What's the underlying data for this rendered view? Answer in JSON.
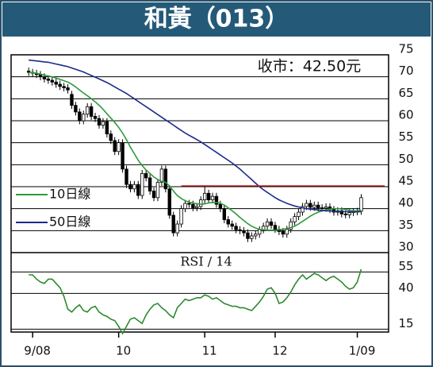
{
  "chart_data": [
    {
      "type": "candlestick",
      "title": "和黃（013）",
      "annotation": "收市：42.50元",
      "xlim": [
        -4.5,
        92
      ],
      "ylim": [
        30,
        75
      ],
      "yticks": [
        30,
        35,
        40,
        45,
        50,
        55,
        60,
        65,
        70,
        75
      ],
      "grid": true,
      "up_color": "#ffffff",
      "down_color": "#000000",
      "legend": "left",
      "open": [
        71.3,
        71,
        70.8,
        70.5,
        70,
        69.5,
        69.2,
        68.8,
        68.3,
        67.8,
        67.5,
        66,
        63.5,
        62,
        60,
        61.5,
        63.2,
        61,
        60.5,
        59,
        59.8,
        57,
        55.5,
        53,
        55,
        49,
        45.5,
        44.5,
        45.5,
        43,
        48,
        47,
        44,
        42.5,
        46,
        49,
        44.5,
        38.5,
        34.5,
        36.5,
        40,
        41.2,
        41,
        40.2,
        40.5,
        42,
        43.5,
        42,
        42.8,
        41,
        40,
        37.5,
        36.5,
        36,
        35.2,
        35,
        34.5,
        33.2,
        33.8,
        34.2,
        35.2,
        36,
        37,
        36.2,
        35.3,
        34.8,
        34.2,
        35.3,
        37,
        38.2,
        39.2,
        40.5,
        41.2,
        40.3,
        40.8,
        40.2,
        40.1,
        40.4,
        39.8,
        39.2,
        39.5,
        38.8,
        38.6,
        39.1,
        39.3,
        39.4
      ],
      "high": [
        72.1,
        71.8,
        71.6,
        71.3,
        70.8,
        70.3,
        70,
        69.6,
        69.1,
        68.6,
        68.3,
        66.8,
        64.3,
        62.8,
        62.3,
        64,
        64,
        61.8,
        61.3,
        60.6,
        60.6,
        57.8,
        56.3,
        55.8,
        55.8,
        49.8,
        46.3,
        46.3,
        46.3,
        48.8,
        48.8,
        47.8,
        44.8,
        46.8,
        49.8,
        49.8,
        45.3,
        39.3,
        37.3,
        40.8,
        42,
        42,
        41.8,
        41.3,
        42.8,
        45.3,
        44.3,
        43.6,
        43.6,
        41.8,
        40.8,
        38.3,
        37.3,
        36.8,
        36,
        35.8,
        35.3,
        34.6,
        35,
        36,
        36.8,
        37.8,
        37.8,
        37,
        36.1,
        35.6,
        36.1,
        37.8,
        39,
        40,
        41.3,
        42,
        42,
        41.6,
        41.6,
        41,
        41.2,
        41.2,
        40.6,
        40.3,
        40.3,
        39.6,
        39.9,
        40.1,
        40.2,
        43.3
      ],
      "low": [
        70.2,
        70,
        69.7,
        69.2,
        68.7,
        68.4,
        68,
        67.5,
        67,
        66.7,
        66.2,
        62.7,
        61.2,
        59.2,
        59.2,
        60.7,
        60.2,
        59.7,
        58.2,
        58.2,
        56.2,
        54.7,
        52.2,
        52.2,
        48.2,
        44.7,
        43.7,
        43.7,
        42.2,
        42.2,
        46.2,
        43.2,
        41.7,
        41.7,
        45.2,
        43.7,
        37.7,
        33.7,
        33.7,
        35.7,
        39.2,
        40.2,
        39.4,
        39.4,
        39.7,
        41.2,
        41.2,
        41.2,
        40.2,
        39.2,
        36.7,
        35.7,
        35.2,
        34.4,
        34.2,
        33.7,
        32.4,
        32.4,
        33,
        33.4,
        34.4,
        35.2,
        35.4,
        34.5,
        34,
        33.4,
        33.4,
        34.5,
        36.2,
        37.4,
        38.4,
        39.7,
        39.5,
        39.5,
        39.4,
        39.3,
        39.3,
        39,
        38.4,
        38.4,
        38,
        37.8,
        37.8,
        38.3,
        38.5,
        38.6
      ],
      "close": [
        71,
        70.8,
        70.5,
        70,
        69.5,
        69.2,
        68.8,
        68.3,
        67.8,
        67.5,
        67,
        63.5,
        62,
        60,
        61.5,
        63.2,
        61,
        60.5,
        59,
        59.8,
        57,
        55.5,
        53,
        55,
        49,
        45.5,
        44.5,
        45.5,
        43,
        48,
        47,
        44,
        42.5,
        46,
        49,
        44.5,
        38.5,
        34.5,
        36.5,
        40,
        41.2,
        41,
        40.2,
        40.5,
        42,
        43.5,
        42,
        42.8,
        41,
        40,
        37.5,
        36.5,
        36,
        35.2,
        35,
        34.5,
        33.2,
        33.8,
        34.2,
        35.2,
        36,
        37,
        36.2,
        35.3,
        34.8,
        34.2,
        35.3,
        37,
        38.2,
        39.2,
        40.5,
        41.2,
        40.3,
        40.8,
        40.2,
        40.1,
        40.4,
        39.8,
        39.2,
        39.5,
        38.8,
        38.6,
        39.1,
        39.3,
        39.4,
        42.5
      ],
      "series": [
        {
          "name": "10日線",
          "color": "#2e9a3a",
          "values": [
            71,
            70.9,
            70.8,
            70.6,
            70.4,
            70.2,
            70,
            69.7,
            69.4,
            69.1,
            68.8,
            68.3,
            67.7,
            67,
            66.3,
            65.7,
            65,
            64.3,
            63.5,
            62.6,
            61.6,
            60.6,
            59.6,
            58.5,
            57.2,
            55.7,
            54,
            52.5,
            51,
            49.8,
            48.8,
            48,
            47.2,
            46.6,
            46.2,
            46,
            45.2,
            44,
            43,
            42.3,
            41.8,
            41.5,
            41.3,
            41.1,
            41,
            41.1,
            41.3,
            41.4,
            41.4,
            41.2,
            40.8,
            40.2,
            39.5,
            38.8,
            38,
            37.3,
            36.6,
            36,
            35.6,
            35.3,
            35.2,
            35.1,
            35.1,
            35.1,
            35.2,
            35.3,
            35.5,
            35.7,
            36,
            36.5,
            37.1,
            37.7,
            38.3,
            38.8,
            39.2,
            39.5,
            39.7,
            39.9,
            40,
            40,
            39.9,
            39.8,
            39.6,
            39.5,
            39.5,
            39.7
          ]
        },
        {
          "name": "50日線",
          "color": "#1c2a8a",
          "values": [
            73.8,
            73.7,
            73.6,
            73.5,
            73.4,
            73.3,
            73.1,
            72.9,
            72.7,
            72.5,
            72.3,
            72,
            71.7,
            71.4,
            71.1,
            70.7,
            70.3,
            69.9,
            69.5,
            69.1,
            68.7,
            68.2,
            67.7,
            67.2,
            66.7,
            66.2,
            65.6,
            65,
            64.4,
            63.8,
            63.2,
            62.6,
            62,
            61.4,
            60.8,
            60.2,
            59.6,
            59,
            58.4,
            57.8,
            57.2,
            56.7,
            56.2,
            55.7,
            55.2,
            54.6,
            54,
            53.4,
            52.8,
            52.2,
            51.6,
            51,
            50.4,
            49.7,
            49,
            48.2,
            47.4,
            46.6,
            45.8,
            45,
            44.3,
            43.7,
            43.1,
            42.5,
            42,
            41.6,
            41.2,
            40.9,
            40.6,
            40.4,
            40.2,
            40,
            39.9,
            39.8,
            39.7,
            39.6,
            39.5,
            39.5,
            39.4,
            39.4,
            39.3,
            39.3,
            39.3,
            39.3,
            39.3,
            39.3
          ]
        }
      ],
      "hline": {
        "value": 45.2,
        "x": [
          39,
          91
        ],
        "color": "#d82020"
      }
    },
    {
      "type": "line",
      "title": "RSI / 14",
      "xlim": [
        -4.5,
        92
      ],
      "ylim": [
        13,
        68
      ],
      "yticks": [
        15,
        40,
        55
      ],
      "grid": true,
      "xticks": [
        {
          "value": 1,
          "label": "9/08"
        },
        {
          "value": 23,
          "label": "10"
        },
        {
          "value": 45,
          "label": "11"
        },
        {
          "value": 63,
          "label": "12"
        },
        {
          "value": 84,
          "label": "1/09"
        }
      ],
      "series": [
        {
          "color": "#2e8a30",
          "values": [
            53,
            53,
            50,
            48,
            47,
            50,
            50,
            47,
            44,
            38,
            29,
            27,
            30,
            32,
            28,
            27,
            30,
            31,
            27,
            25,
            24,
            22,
            21,
            17,
            12,
            17,
            22,
            23,
            21,
            19,
            25,
            29,
            32,
            33,
            30,
            28,
            25,
            23,
            30,
            33,
            36,
            35,
            36,
            37,
            37,
            39,
            38,
            36,
            37,
            35,
            33,
            32,
            31,
            31,
            30,
            30,
            29,
            28,
            31,
            34,
            38,
            43,
            44,
            40,
            33,
            34,
            37,
            41,
            46,
            50,
            53,
            50,
            52,
            54,
            53,
            51,
            49,
            51,
            52,
            50,
            48,
            45,
            43,
            44,
            48,
            57
          ]
        }
      ]
    }
  ]
}
